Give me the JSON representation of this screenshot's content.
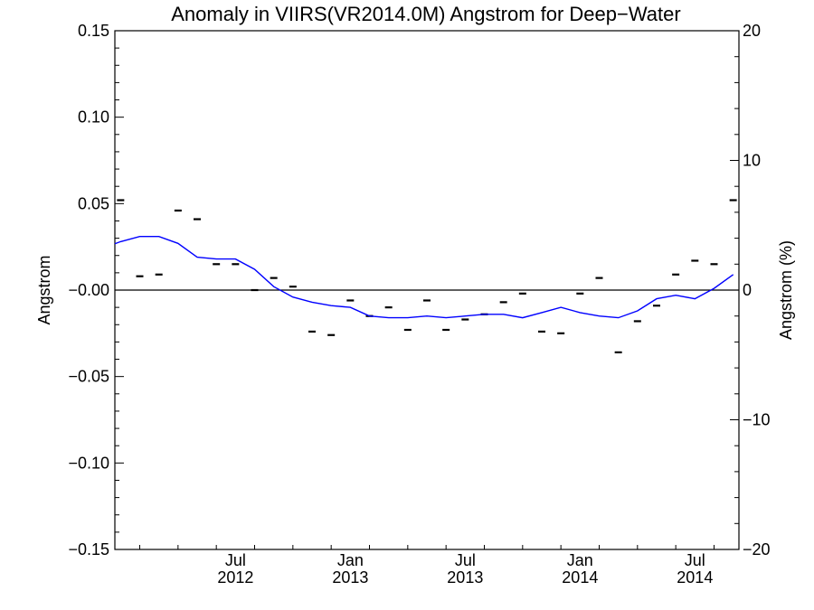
{
  "chart_data": {
    "type": "line",
    "title": "Anomaly in VIIRS(VR2014.0M) Angstrom for Deep−Water",
    "ylabel": "Angstrom",
    "ylabel_right": "Angstrom (%)",
    "ylim": [
      -0.15,
      0.15
    ],
    "ylim_right": [
      -20,
      20
    ],
    "xlim": [
      "2012-01",
      "2014-09"
    ],
    "y_ticks": [
      "−0.15",
      "−0.10",
      "−0.05",
      "−0.00",
      "0.05",
      "0.10",
      "0.15"
    ],
    "y_tick_values": [
      -0.15,
      -0.1,
      -0.05,
      0.0,
      0.05,
      0.1,
      0.15
    ],
    "y_right_ticks": [
      "−20",
      "−10",
      "0",
      "10",
      "20"
    ],
    "y_right_tick_values": [
      -20,
      -10,
      0,
      10,
      20
    ],
    "x_ticks": [
      {
        "month": "2012-07",
        "line1": "Jul",
        "line2": "2012"
      },
      {
        "month": "2013-01",
        "line1": "Jan",
        "line2": "2013"
      },
      {
        "month": "2013-07",
        "line1": "Jul",
        "line2": "2013"
      },
      {
        "month": "2014-01",
        "line1": "Jan",
        "line2": "2014"
      },
      {
        "month": "2014-07",
        "line1": "Jul",
        "line2": "2014"
      }
    ],
    "series": [
      {
        "kind": "monthly anomaly markers",
        "color": "#000000",
        "x": [
          "2012-01",
          "2012-02",
          "2012-03",
          "2012-04",
          "2012-05",
          "2012-06",
          "2012-07",
          "2012-08",
          "2012-09",
          "2012-10",
          "2012-11",
          "2012-12",
          "2013-01",
          "2013-02",
          "2013-03",
          "2013-04",
          "2013-05",
          "2013-06",
          "2013-07",
          "2013-08",
          "2013-09",
          "2013-10",
          "2013-11",
          "2013-12",
          "2014-01",
          "2014-02",
          "2014-03",
          "2014-04",
          "2014-05",
          "2014-06",
          "2014-07",
          "2014-08",
          "2014-09"
        ],
        "values": [
          0.052,
          0.008,
          0.009,
          0.046,
          0.041,
          0.015,
          0.015,
          0.0,
          0.007,
          0.002,
          -0.024,
          -0.026,
          -0.006,
          -0.015,
          -0.01,
          -0.023,
          -0.006,
          -0.023,
          -0.017,
          -0.014,
          -0.007,
          -0.002,
          -0.024,
          -0.025,
          -0.002,
          0.007,
          -0.036,
          -0.018,
          -0.009,
          0.009,
          0.017,
          0.015,
          0.052
        ]
      },
      {
        "kind": "smoothed running mean",
        "color": "#0000ff",
        "x": [
          "2011-12",
          "2012-01",
          "2012-02",
          "2012-03",
          "2012-04",
          "2012-05",
          "2012-06",
          "2012-07",
          "2012-08",
          "2012-09",
          "2012-10",
          "2012-11",
          "2012-12",
          "2013-01",
          "2013-02",
          "2013-03",
          "2013-04",
          "2013-05",
          "2013-06",
          "2013-07",
          "2013-08",
          "2013-09",
          "2013-10",
          "2013-11",
          "2013-12",
          "2014-01",
          "2014-02",
          "2014-03",
          "2014-04",
          "2014-05",
          "2014-06",
          "2014-07",
          "2014-08",
          "2014-09"
        ],
        "values": [
          0.024,
          0.028,
          0.031,
          0.031,
          0.027,
          0.019,
          0.018,
          0.018,
          0.012,
          0.002,
          -0.004,
          -0.007,
          -0.009,
          -0.01,
          -0.015,
          -0.016,
          -0.016,
          -0.015,
          -0.016,
          -0.015,
          -0.014,
          -0.014,
          -0.016,
          -0.013,
          -0.01,
          -0.013,
          -0.015,
          -0.016,
          -0.012,
          -0.005,
          -0.003,
          -0.005,
          0.001,
          0.009
        ]
      }
    ],
    "zero_line": true,
    "grid": false
  }
}
